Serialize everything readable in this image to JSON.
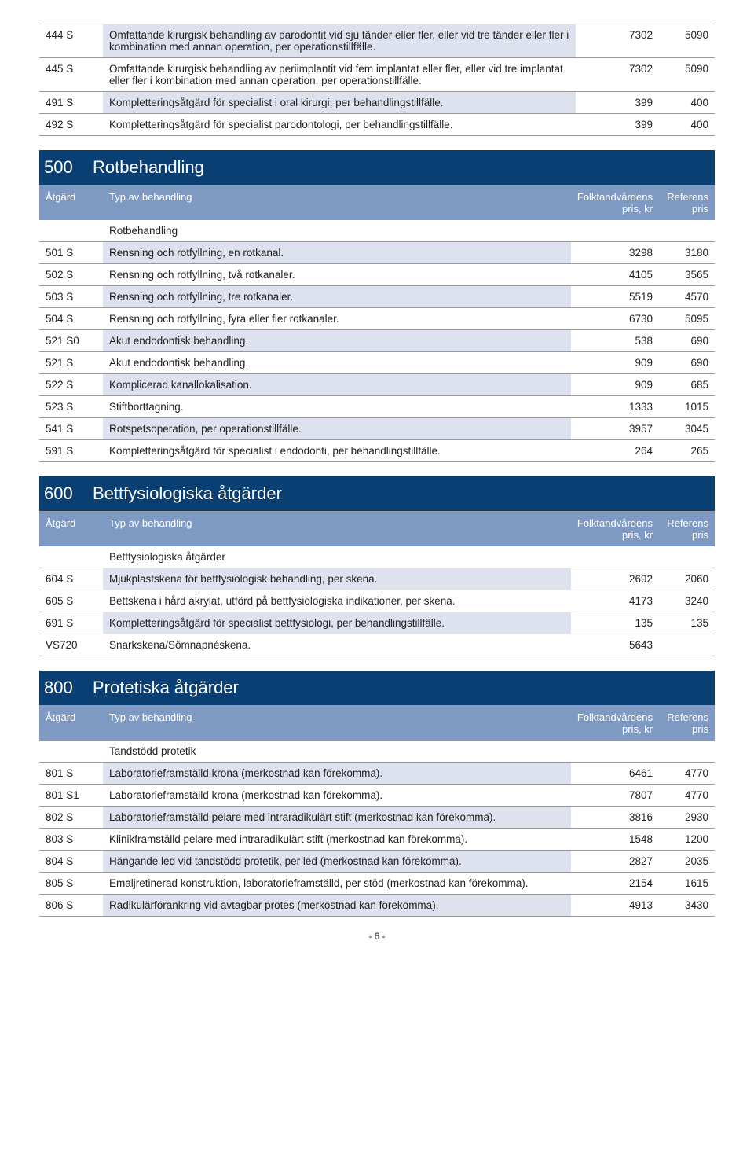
{
  "sectionHeader": {
    "bg": "#0a3f74",
    "label_action": "Åtgärd",
    "label_type": "Typ av behandling",
    "label_p1a": "Folktandvårdens",
    "label_p1b": "pris, kr",
    "label_p2a": "Referens",
    "label_p2b": "pris"
  },
  "topRows": [
    {
      "code": "444 S",
      "desc": "Omfattande kirurgisk behandling av parodontit vid sju tänder eller fler, eller vid tre tänder eller fler i kombination med annan operation, per operationstillfälle.",
      "p1": "7302",
      "p2": "5090"
    },
    {
      "code": "445 S",
      "desc": "Omfattande kirurgisk behandling av periimplantit vid fem implantat eller fler, eller vid tre implantat eller fler i kombination med annan operation, per operationstillfälle.",
      "p1": "7302",
      "p2": "5090"
    },
    {
      "code": "491 S",
      "desc": "Kompletteringsåtgärd för specialist i oral kirurgi, per behandlingstillfälle.",
      "p1": "399",
      "p2": "400"
    },
    {
      "code": "492 S",
      "desc": "Kompletteringsåtgärd för specialist parodontologi, per behandlingstillfälle.",
      "p1": "399",
      "p2": "400"
    }
  ],
  "sections": [
    {
      "num": "500",
      "title": "Rotbehandling",
      "category": "Rotbehandling",
      "rows": [
        {
          "code": "501 S",
          "desc": "Rensning och rotfyllning, en rotkanal.",
          "p1": "3298",
          "p2": "3180"
        },
        {
          "code": "502 S",
          "desc": "Rensning och rotfyllning, två rotkanaler.",
          "p1": "4105",
          "p2": "3565"
        },
        {
          "code": "503 S",
          "desc": "Rensning och rotfyllning, tre rotkanaler.",
          "p1": "5519",
          "p2": "4570"
        },
        {
          "code": "504 S",
          "desc": "Rensning och rotfyllning, fyra eller fler rotkanaler.",
          "p1": "6730",
          "p2": "5095"
        },
        {
          "code": "521 S0",
          "desc": "Akut endodontisk behandling.",
          "p1": "538",
          "p2": "690"
        },
        {
          "code": "521 S",
          "desc": "Akut endodontisk behandling.",
          "p1": "909",
          "p2": "690"
        },
        {
          "code": "522 S",
          "desc": "Komplicerad kanallokalisation.",
          "p1": "909",
          "p2": "685"
        },
        {
          "code": "523 S",
          "desc": "Stiftborttagning.",
          "p1": "1333",
          "p2": "1015"
        },
        {
          "code": "541 S",
          "desc": "Rotspetsoperation, per operationstillfälle.",
          "p1": "3957",
          "p2": "3045"
        },
        {
          "code": "591 S",
          "desc": "Kompletteringsåtgärd för specialist i endodonti, per behandlingstillfälle.",
          "p1": "264",
          "p2": "265"
        }
      ]
    },
    {
      "num": "600",
      "title": "Bettfysiologiska åtgärder",
      "category": "Bettfysiologiska åtgärder",
      "rows": [
        {
          "code": "604 S",
          "desc": "Mjukplastskena för bettfysiologisk behandling, per skena.",
          "p1": "2692",
          "p2": "2060"
        },
        {
          "code": "605 S",
          "desc": "Bettskena i hård akrylat, utförd på bettfysiologiska indikationer, per skena.",
          "p1": "4173",
          "p2": "3240"
        },
        {
          "code": "691 S",
          "desc": "Kompletteringsåtgärd för specialist bettfysiologi, per behandlingstillfälle.",
          "p1": "135",
          "p2": "135"
        },
        {
          "code": "VS720",
          "desc": "Snarkskena/Sömnapnéskena.",
          "p1": "5643",
          "p2": ""
        }
      ]
    },
    {
      "num": "800",
      "title": "Protetiska åtgärder",
      "category": "Tandstödd protetik",
      "rows": [
        {
          "code": "801 S",
          "desc": "Laboratorieframställd krona (merkostnad kan förekomma).",
          "p1": "6461",
          "p2": "4770"
        },
        {
          "code": "801 S1",
          "desc": "Laboratorieframställd krona (merkostnad kan förekomma).",
          "p1": "7807",
          "p2": "4770"
        },
        {
          "code": "802 S",
          "desc": "Laboratorieframställd pelare med intraradikulärt stift (merkostnad kan förekomma).",
          "p1": "3816",
          "p2": "2930"
        },
        {
          "code": "803 S",
          "desc": "Klinikframställd pelare med intraradikulärt stift (merkostnad kan förekomma).",
          "p1": "1548",
          "p2": "1200"
        },
        {
          "code": "804 S",
          "desc": "Hängande led vid tandstödd protetik, per led (merkostnad kan förekomma).",
          "p1": "2827",
          "p2": "2035"
        },
        {
          "code": "805 S",
          "desc": "Emaljretinerad konstruktion, laboratorieframställd, per stöd (merkostnad kan förekomma).",
          "p1": "2154",
          "p2": "1615"
        },
        {
          "code": "806 S",
          "desc": "Radikulärförankring vid avtagbar protes (merkostnad kan förekomma).",
          "p1": "4913",
          "p2": "3430"
        }
      ]
    }
  ],
  "pagenum": "- 6 -"
}
